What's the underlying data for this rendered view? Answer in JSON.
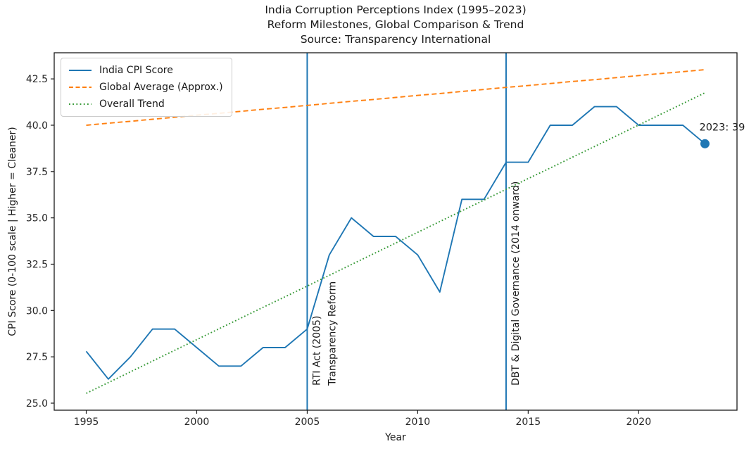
{
  "title": {
    "line1": "India Corruption Perceptions Index (1995–2023)",
    "line2": "Reform Milestones, Global Comparison & Trend",
    "line3": "Source: Transparency International"
  },
  "chart_data": {
    "type": "line",
    "x": [
      1995,
      1996,
      1997,
      1998,
      1999,
      2000,
      2001,
      2002,
      2003,
      2004,
      2005,
      2006,
      2007,
      2008,
      2009,
      2010,
      2011,
      2012,
      2013,
      2014,
      2015,
      2016,
      2017,
      2018,
      2019,
      2020,
      2021,
      2022,
      2023
    ],
    "series": [
      {
        "name": "India CPI Score",
        "color": "#1f77b4",
        "style": "solid",
        "values": [
          27.8,
          26.3,
          27.5,
          29,
          29,
          28,
          27,
          27,
          28,
          28,
          29,
          33,
          35,
          34,
          34,
          33,
          31,
          36,
          36,
          38,
          38,
          40,
          40,
          41,
          41,
          40,
          40,
          40,
          39
        ]
      },
      {
        "name": "Global Average (Approx.)",
        "color": "#ff7f0e",
        "style": "dashed",
        "values": [
          40.0,
          40.11,
          40.21,
          40.32,
          40.43,
          40.54,
          40.64,
          40.75,
          40.86,
          40.96,
          41.07,
          41.18,
          41.29,
          41.39,
          41.5,
          41.61,
          41.71,
          41.82,
          41.93,
          42.04,
          42.14,
          42.25,
          42.36,
          42.46,
          42.57,
          42.68,
          42.79,
          42.89,
          43.0
        ]
      },
      {
        "name": "Overall Trend",
        "color": "#379a37",
        "style": "dotted",
        "values": [
          25.53,
          26.11,
          26.69,
          27.27,
          27.85,
          28.43,
          29.01,
          29.59,
          30.17,
          30.74,
          31.32,
          31.9,
          32.48,
          33.06,
          33.64,
          34.22,
          34.8,
          35.38,
          35.96,
          36.54,
          37.12,
          37.69,
          38.27,
          38.85,
          39.43,
          40.01,
          40.59,
          41.17,
          41.75
        ]
      }
    ],
    "xlabel": "Year",
    "ylabel": "CPI Score (0-100 scale | Higher = Cleaner)",
    "xticks": [
      1995,
      2000,
      2005,
      2010,
      2015,
      2020
    ],
    "yticks": [
      25.0,
      27.5,
      30.0,
      32.5,
      35.0,
      37.5,
      40.0,
      42.5
    ],
    "xlim": [
      1993.55,
      2024.45
    ],
    "ylim": [
      24.62,
      43.91
    ],
    "grid": false,
    "legend_position": "upper left",
    "vlines": [
      {
        "x": 2005,
        "color": "#1f77b4",
        "label_lines": [
          "RTI Act (2005)",
          "Transparency Reform"
        ]
      },
      {
        "x": 2014,
        "color": "#1f77b4",
        "label_lines": [
          "DBT & Digital Governance (2014 onward)"
        ]
      }
    ],
    "annotation": {
      "text": "2023: 39",
      "x": 2023,
      "y": 39
    },
    "end_marker": {
      "x": 2023,
      "y": 39,
      "color": "#1f77b4"
    }
  }
}
